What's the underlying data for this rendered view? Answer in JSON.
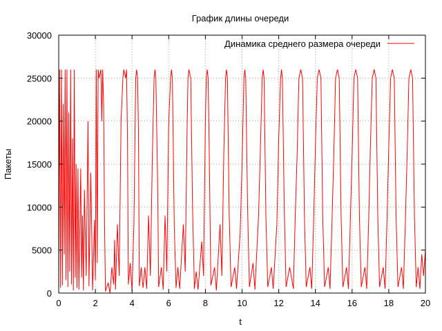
{
  "chart_data": {
    "type": "line",
    "title": "График длины очереди",
    "xlabel": "t",
    "ylabel": "Пакеты",
    "xlim": [
      0,
      20
    ],
    "ylim": [
      0,
      30000
    ],
    "x_ticks": [
      "0",
      "2",
      "4",
      "6",
      "8",
      "10",
      "12",
      "14",
      "16",
      "18",
      "20"
    ],
    "y_ticks": [
      "0",
      "5000",
      "10000",
      "15000",
      "20000",
      "25000",
      "30000"
    ],
    "grid": true,
    "legend_position": "top-right",
    "line_color": "#ff0000",
    "series": [
      {
        "name": "Динамика среднего размера очереди",
        "color": "#ff0000",
        "points": [
          [
            0.0,
            1200
          ],
          [
            0.05,
            26000
          ],
          [
            0.1,
            600
          ],
          [
            0.15,
            26000
          ],
          [
            0.2,
            900
          ],
          [
            0.25,
            22000
          ],
          [
            0.3,
            4500
          ],
          [
            0.35,
            26000
          ],
          [
            0.4,
            1500
          ],
          [
            0.45,
            26000
          ],
          [
            0.5,
            700
          ],
          [
            0.55,
            21000
          ],
          [
            0.6,
            2500
          ],
          [
            0.65,
            26000
          ],
          [
            0.7,
            1000
          ],
          [
            0.75,
            18000
          ],
          [
            0.8,
            300
          ],
          [
            0.85,
            26000
          ],
          [
            0.9,
            1800
          ],
          [
            0.95,
            15000
          ],
          [
            1.0,
            600
          ],
          [
            1.05,
            14500
          ],
          [
            1.1,
            400
          ],
          [
            1.2,
            14500
          ],
          [
            1.25,
            1800
          ],
          [
            1.3,
            9000
          ],
          [
            1.35,
            300
          ],
          [
            1.4,
            12000
          ],
          [
            1.5,
            2000
          ],
          [
            1.6,
            20000
          ],
          [
            1.65,
            800
          ],
          [
            1.75,
            14000
          ],
          [
            1.85,
            300
          ],
          [
            1.95,
            8500
          ],
          [
            2.0,
            1500
          ],
          [
            2.05,
            26000
          ],
          [
            2.1,
            3500
          ],
          [
            2.15,
            26000
          ],
          [
            2.2,
            25000
          ],
          [
            2.3,
            26000
          ],
          [
            2.35,
            20000
          ],
          [
            2.4,
            26000
          ],
          [
            2.45,
            22000
          ],
          [
            2.5,
            8000
          ],
          [
            2.55,
            200
          ],
          [
            2.7,
            1200
          ],
          [
            2.8,
            0
          ],
          [
            2.9,
            3000
          ],
          [
            3.0,
            1000
          ],
          [
            3.05,
            6200
          ],
          [
            3.1,
            400
          ],
          [
            3.2,
            8000
          ],
          [
            3.3,
            2000
          ],
          [
            3.4,
            20000
          ],
          [
            3.5,
            25000
          ],
          [
            3.55,
            26000
          ],
          [
            3.65,
            25000
          ],
          [
            3.7,
            26000
          ],
          [
            3.75,
            18000
          ],
          [
            3.8,
            1000
          ],
          [
            3.9,
            3500
          ],
          [
            4.0,
            200
          ],
          [
            4.1,
            8000
          ],
          [
            4.2,
            25000
          ],
          [
            4.25,
            26000
          ],
          [
            4.3,
            25000
          ],
          [
            4.35,
            19000
          ],
          [
            4.4,
            800
          ],
          [
            4.5,
            3000
          ],
          [
            4.6,
            600
          ],
          [
            4.7,
            3000
          ],
          [
            4.8,
            500
          ],
          [
            4.9,
            9000
          ],
          [
            5.0,
            2000
          ],
          [
            5.1,
            15000
          ],
          [
            5.2,
            25000
          ],
          [
            5.25,
            26000
          ],
          [
            5.3,
            25000
          ],
          [
            5.4,
            12000
          ],
          [
            5.45,
            700
          ],
          [
            5.6,
            3000
          ],
          [
            5.7,
            400
          ],
          [
            5.8,
            9000
          ],
          [
            5.9,
            2500
          ],
          [
            6.0,
            20000
          ],
          [
            6.1,
            25000
          ],
          [
            6.15,
            26000
          ],
          [
            6.2,
            25000
          ],
          [
            6.3,
            8000
          ],
          [
            6.4,
            600
          ],
          [
            6.5,
            3000
          ],
          [
            6.6,
            500
          ],
          [
            6.8,
            8000
          ],
          [
            6.9,
            2500
          ],
          [
            7.0,
            19000
          ],
          [
            7.05,
            25000
          ],
          [
            7.1,
            26000
          ],
          [
            7.2,
            25000
          ],
          [
            7.3,
            10000
          ],
          [
            7.4,
            500
          ],
          [
            7.5,
            2500
          ],
          [
            7.6,
            400
          ],
          [
            7.8,
            6000
          ],
          [
            7.9,
            2000
          ],
          [
            8.0,
            20000
          ],
          [
            8.05,
            25000
          ],
          [
            8.1,
            26000
          ],
          [
            8.15,
            25000
          ],
          [
            8.2,
            18000
          ],
          [
            8.3,
            900
          ],
          [
            8.5,
            3000
          ],
          [
            8.6,
            300
          ],
          [
            8.8,
            8000
          ],
          [
            8.9,
            2000
          ],
          [
            9.0,
            16000
          ],
          [
            9.1,
            25000
          ],
          [
            9.15,
            26000
          ],
          [
            9.2,
            25000
          ],
          [
            9.3,
            9000
          ],
          [
            9.4,
            700
          ],
          [
            9.6,
            3000
          ],
          [
            9.7,
            500
          ],
          [
            9.9,
            7000
          ],
          [
            10.0,
            15000
          ],
          [
            10.1,
            25000
          ],
          [
            10.15,
            26000
          ],
          [
            10.2,
            25000
          ],
          [
            10.3,
            10000
          ],
          [
            10.4,
            700
          ],
          [
            10.6,
            3500
          ],
          [
            10.7,
            400
          ],
          [
            10.9,
            9000
          ],
          [
            11.0,
            17000
          ],
          [
            11.1,
            25000
          ],
          [
            11.15,
            26000
          ],
          [
            11.2,
            25000
          ],
          [
            11.3,
            9000
          ],
          [
            11.4,
            700
          ],
          [
            11.6,
            3000
          ],
          [
            11.7,
            500
          ],
          [
            11.9,
            8000
          ],
          [
            12.0,
            18000
          ],
          [
            12.1,
            25000
          ],
          [
            12.15,
            26000
          ],
          [
            12.2,
            25000
          ],
          [
            12.3,
            10000
          ],
          [
            12.4,
            700
          ],
          [
            12.6,
            3000
          ],
          [
            12.8,
            500
          ],
          [
            12.9,
            9000
          ],
          [
            13.0,
            16000
          ],
          [
            13.1,
            25000
          ],
          [
            13.2,
            26000
          ],
          [
            13.3,
            25000
          ],
          [
            13.4,
            9000
          ],
          [
            13.5,
            700
          ],
          [
            13.7,
            3000
          ],
          [
            13.8,
            500
          ],
          [
            13.9,
            8000
          ],
          [
            14.0,
            17000
          ],
          [
            14.1,
            25000
          ],
          [
            14.2,
            26000
          ],
          [
            14.3,
            25000
          ],
          [
            14.4,
            9000
          ],
          [
            14.5,
            700
          ],
          [
            14.7,
            3000
          ],
          [
            14.8,
            500
          ],
          [
            14.9,
            8000
          ],
          [
            15.0,
            16000
          ],
          [
            15.1,
            25000
          ],
          [
            15.2,
            26000
          ],
          [
            15.3,
            25000
          ],
          [
            15.4,
            9000
          ],
          [
            15.5,
            700
          ],
          [
            15.7,
            3000
          ],
          [
            15.8,
            500
          ],
          [
            15.9,
            8000
          ],
          [
            16.0,
            16000
          ],
          [
            16.1,
            25000
          ],
          [
            16.2,
            26000
          ],
          [
            16.3,
            25000
          ],
          [
            16.4,
            9000
          ],
          [
            16.5,
            700
          ],
          [
            16.7,
            3000
          ],
          [
            16.8,
            500
          ],
          [
            16.9,
            8000
          ],
          [
            17.0,
            17000
          ],
          [
            17.1,
            25000
          ],
          [
            17.2,
            26000
          ],
          [
            17.3,
            25000
          ],
          [
            17.4,
            9000
          ],
          [
            17.5,
            700
          ],
          [
            17.7,
            3000
          ],
          [
            17.8,
            500
          ],
          [
            17.9,
            8000
          ],
          [
            18.0,
            17000
          ],
          [
            18.1,
            25000
          ],
          [
            18.2,
            26000
          ],
          [
            18.3,
            25000
          ],
          [
            18.4,
            9000
          ],
          [
            18.5,
            700
          ],
          [
            18.7,
            3000
          ],
          [
            18.8,
            500
          ],
          [
            18.9,
            8000
          ],
          [
            19.0,
            16000
          ],
          [
            19.1,
            25000
          ],
          [
            19.2,
            26000
          ],
          [
            19.3,
            25000
          ],
          [
            19.4,
            9000
          ],
          [
            19.5,
            700
          ],
          [
            19.6,
            3000
          ],
          [
            19.7,
            500
          ],
          [
            19.8,
            4500
          ],
          [
            19.9,
            2000
          ],
          [
            20.0,
            5000
          ]
        ]
      }
    ]
  }
}
